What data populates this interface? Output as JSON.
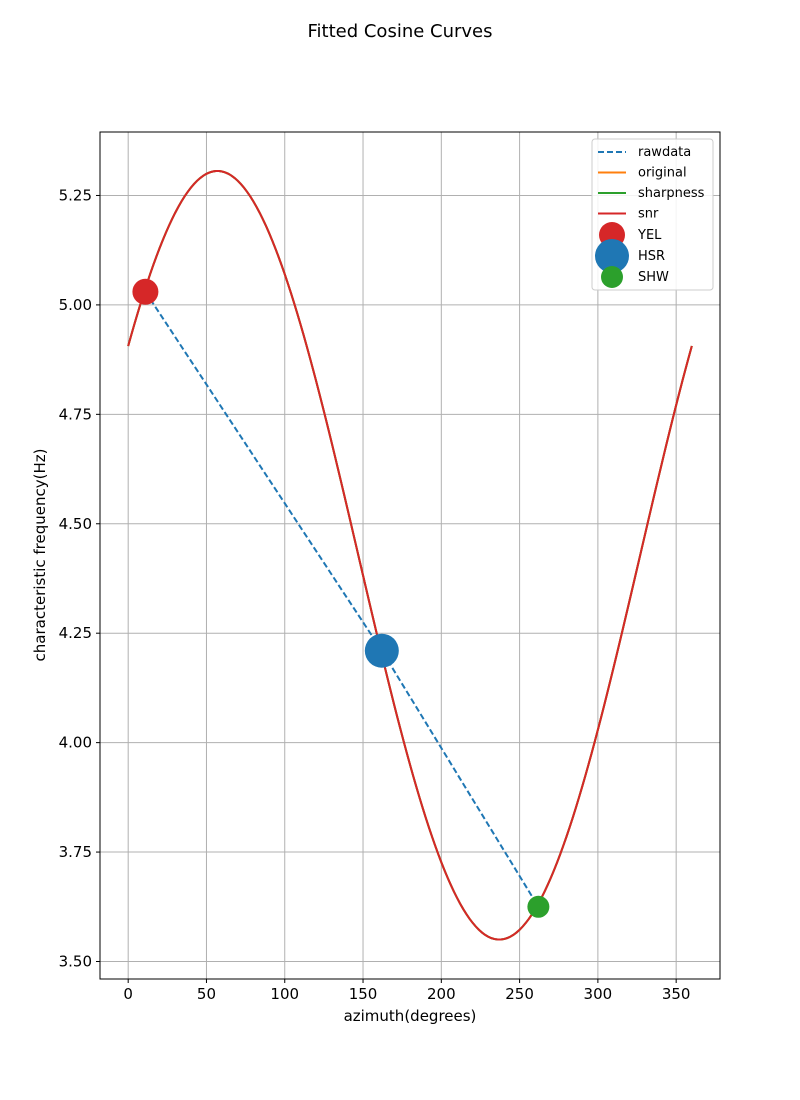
{
  "chart_data": {
    "type": "line",
    "title": "Fitted Cosine Curves",
    "xlabel": "azimuth(degrees)",
    "ylabel": "characteristic frequency(Hz)",
    "xlim": [
      -18,
      378
    ],
    "ylim": [
      3.46,
      5.395
    ],
    "xticks": [
      0,
      50,
      100,
      150,
      200,
      250,
      300,
      350
    ],
    "yticks": [
      3.5,
      3.75,
      4.0,
      4.25,
      4.5,
      4.75,
      5.0,
      5.25
    ],
    "xtick_labels": [
      "0",
      "50",
      "100",
      "150",
      "200",
      "250",
      "300",
      "350"
    ],
    "ytick_labels": [
      "3.50",
      "3.75",
      "4.00",
      "4.25",
      "4.50",
      "4.75",
      "5.00",
      "5.25"
    ],
    "grid": true,
    "legend_position": "upper right",
    "curve_model": {
      "formula": "offset + amplitude * cos(azimuth - phase)",
      "offset": 4.428,
      "amplitude": 0.878,
      "phase_deg": 57,
      "x_range": [
        0,
        360
      ]
    },
    "series": [
      {
        "name": "rawdata",
        "kind": "dashed-line",
        "color": "#1f77b4",
        "x": [
          11,
          162,
          262
        ],
        "y": [
          5.03,
          4.21,
          3.625
        ]
      },
      {
        "name": "original",
        "kind": "fitted-curve",
        "color": "#ff7f0e"
      },
      {
        "name": "sharpness",
        "kind": "fitted-curve",
        "color": "#2ca02c"
      },
      {
        "name": "snr",
        "kind": "fitted-curve",
        "color": "#d62728"
      }
    ],
    "points": [
      {
        "name": "YEL",
        "x": 11,
        "y": 5.03,
        "color": "#d62728",
        "size": "medium"
      },
      {
        "name": "HSR",
        "x": 162,
        "y": 4.21,
        "color": "#1f77b4",
        "size": "large"
      },
      {
        "name": "SHW",
        "x": 262,
        "y": 3.625,
        "color": "#2ca02c",
        "size": "small"
      }
    ]
  }
}
